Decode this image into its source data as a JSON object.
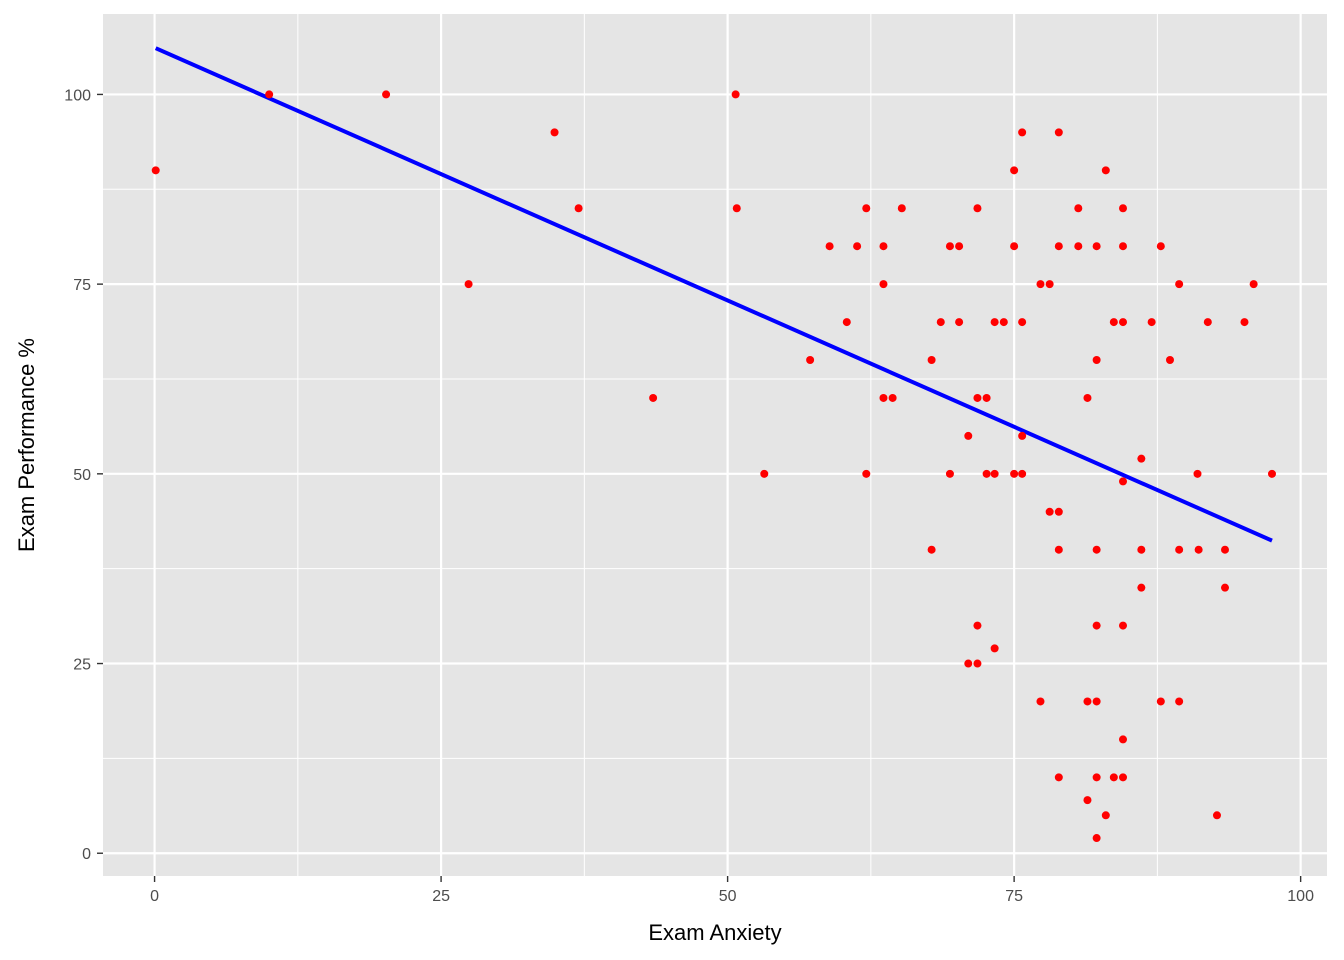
{
  "chart_data": {
    "type": "scatter",
    "title": "",
    "xlabel": "Exam Anxiety",
    "ylabel": "Exam Performance %",
    "xlim": [
      -4.5,
      102.3
    ],
    "ylim": [
      -3,
      110.6
    ],
    "x_ticks": [
      0,
      25,
      50,
      75,
      100
    ],
    "x_tick_labels": [
      "0",
      "25",
      "50",
      "75",
      "100"
    ],
    "y_ticks": [
      0,
      25,
      50,
      75,
      100
    ],
    "y_tick_labels": [
      "0",
      "25",
      "50",
      "75",
      "100"
    ],
    "grid": true,
    "legend": "none",
    "point_color": "#ff0000",
    "line_color": "#0000ff",
    "panel_color": "#e5e5e5",
    "grid_color": "#ffffff",
    "points": [
      [
        0.1,
        90
      ],
      [
        10.0,
        100
      ],
      [
        20.2,
        100
      ],
      [
        27.4,
        75
      ],
      [
        34.9,
        95
      ],
      [
        37.0,
        85
      ],
      [
        43.5,
        60
      ],
      [
        50.7,
        100
      ],
      [
        50.8,
        85
      ],
      [
        53.2,
        50
      ],
      [
        57.2,
        65
      ],
      [
        58.9,
        80
      ],
      [
        60.4,
        70
      ],
      [
        61.3,
        80
      ],
      [
        62.1,
        85
      ],
      [
        62.1,
        50
      ],
      [
        63.6,
        80
      ],
      [
        63.6,
        75
      ],
      [
        63.6,
        60
      ],
      [
        64.4,
        60
      ],
      [
        65.2,
        85
      ],
      [
        67.8,
        65
      ],
      [
        67.8,
        40
      ],
      [
        68.6,
        70
      ],
      [
        69.4,
        80
      ],
      [
        69.4,
        50
      ],
      [
        70.2,
        80
      ],
      [
        70.2,
        70
      ],
      [
        71.0,
        55
      ],
      [
        71.0,
        25
      ],
      [
        71.8,
        85
      ],
      [
        71.8,
        60
      ],
      [
        71.8,
        30
      ],
      [
        71.8,
        25
      ],
      [
        72.6,
        60
      ],
      [
        72.6,
        50
      ],
      [
        73.3,
        70
      ],
      [
        73.3,
        50
      ],
      [
        73.3,
        27
      ],
      [
        74.1,
        70
      ],
      [
        75.0,
        90
      ],
      [
        75.0,
        80
      ],
      [
        75.0,
        50
      ],
      [
        75.7,
        95
      ],
      [
        75.7,
        70
      ],
      [
        75.7,
        55
      ],
      [
        75.7,
        50
      ],
      [
        77.3,
        75
      ],
      [
        77.3,
        20
      ],
      [
        78.1,
        75
      ],
      [
        78.1,
        45
      ],
      [
        78.9,
        95
      ],
      [
        78.9,
        80
      ],
      [
        78.9,
        45
      ],
      [
        78.9,
        40
      ],
      [
        78.9,
        10
      ],
      [
        80.6,
        85
      ],
      [
        80.6,
        80
      ],
      [
        81.4,
        60
      ],
      [
        81.4,
        20
      ],
      [
        81.4,
        7
      ],
      [
        82.2,
        80
      ],
      [
        82.2,
        65
      ],
      [
        82.2,
        40
      ],
      [
        82.2,
        30
      ],
      [
        82.2,
        20
      ],
      [
        82.2,
        10
      ],
      [
        82.2,
        2
      ],
      [
        83.0,
        90
      ],
      [
        83.0,
        5
      ],
      [
        83.7,
        70
      ],
      [
        83.7,
        10
      ],
      [
        84.5,
        85
      ],
      [
        84.5,
        80
      ],
      [
        84.5,
        70
      ],
      [
        84.5,
        49
      ],
      [
        84.5,
        30
      ],
      [
        84.5,
        15
      ],
      [
        84.5,
        10
      ],
      [
        86.1,
        52
      ],
      [
        86.1,
        40
      ],
      [
        86.1,
        35
      ],
      [
        87.0,
        70
      ],
      [
        87.8,
        80
      ],
      [
        87.8,
        20
      ],
      [
        88.6,
        65
      ],
      [
        89.4,
        75
      ],
      [
        89.4,
        40
      ],
      [
        89.4,
        20
      ],
      [
        91.0,
        50
      ],
      [
        91.1,
        40
      ],
      [
        91.9,
        70
      ],
      [
        92.7,
        5
      ],
      [
        93.4,
        40
      ],
      [
        93.4,
        35
      ],
      [
        95.1,
        70
      ],
      [
        95.9,
        75
      ],
      [
        97.5,
        50
      ]
    ],
    "fit_line": {
      "x": [
        0.1,
        97.5
      ],
      "y": [
        106.1,
        41.2
      ]
    }
  }
}
